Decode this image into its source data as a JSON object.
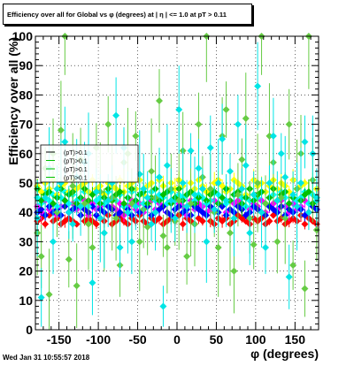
{
  "title": "Efficiency over all for Global vs φ (degrees) at | η | <= 1.0 at pT > 0.11",
  "footer_date": "Wed Jan 31 10:55:57 2018",
  "colors": {
    "frame": "#000000",
    "grid": "#000000",
    "legend_bg": "#ffffff"
  },
  "chart_data": {
    "type": "scatter",
    "title": "Efficiency over all for Global vs φ (degrees) at | η | <= 1.0 at pT > 0.11",
    "xlabel": "φ (degrees)",
    "ylabel": "Efficiency over all (%)",
    "xlim": [
      -180,
      180
    ],
    "ylim": [
      0,
      100
    ],
    "xticks": [
      -150,
      -100,
      -50,
      0,
      50,
      100,
      150
    ],
    "yticks": [
      0,
      10,
      20,
      30,
      40,
      50,
      60,
      70,
      80,
      90,
      100
    ],
    "grid": true,
    "legend_position": "upper-left",
    "legend_entries": [
      "(pT)>0.1",
      "(pT)>0.1",
      "(pT)>0.1",
      "(pT)>0.1"
    ],
    "bins": {
      "start": -177.5,
      "step": 5,
      "count": 72
    },
    "series": [
      {
        "color": "#ff0000",
        "marker": "diamond",
        "values": [
          37,
          38,
          36,
          39,
          37,
          38,
          36,
          37,
          38,
          37,
          36,
          39,
          37,
          38,
          37,
          36,
          38,
          37,
          39,
          36,
          37,
          38,
          37,
          36,
          38,
          37,
          39,
          37,
          36,
          38,
          37,
          38,
          36,
          37,
          38,
          37,
          39,
          36,
          38,
          37,
          36,
          38,
          37,
          39,
          37,
          36,
          38,
          37,
          38,
          36,
          37,
          39,
          38,
          37,
          36,
          38,
          37,
          38,
          36,
          37,
          39,
          37,
          38,
          36,
          37,
          38,
          37,
          39,
          36,
          38,
          37,
          36
        ],
        "err": 1.5
      },
      {
        "color": "#ff00ff",
        "marker": "diamond",
        "values": [
          42,
          40,
          44,
          41,
          43,
          39,
          42,
          44,
          40,
          43,
          41,
          42,
          44,
          39,
          43,
          41,
          42,
          40,
          44,
          42,
          41,
          43,
          39,
          42,
          44,
          41,
          43,
          40,
          42,
          44,
          41,
          43,
          42,
          40,
          44,
          41,
          43,
          42,
          39,
          44,
          41,
          43,
          42,
          40,
          41,
          44,
          43,
          42,
          40,
          41,
          43,
          44,
          42,
          39,
          41,
          43,
          42,
          44,
          40,
          42,
          43,
          41,
          44,
          42,
          40,
          43,
          41,
          42,
          44,
          40,
          43,
          41
        ],
        "err": 2.0
      },
      {
        "color": "#0000ff",
        "marker": "diamond",
        "values": [
          40,
          41,
          39,
          42,
          40,
          41,
          39,
          42,
          40,
          41,
          42,
          39,
          41,
          40,
          42,
          39,
          41,
          40,
          42,
          41,
          39,
          40,
          42,
          41,
          39,
          42,
          40,
          41,
          42,
          39,
          40,
          41,
          42,
          40,
          39,
          41,
          42,
          40,
          41,
          39,
          42,
          41,
          40,
          39,
          42,
          41,
          40,
          42,
          39,
          41,
          40,
          42,
          41,
          39,
          40,
          42,
          41,
          40,
          39,
          42,
          41,
          40,
          42,
          39,
          41,
          40,
          42,
          41,
          39,
          40,
          42,
          41
        ],
        "err": 1.5
      },
      {
        "color": "#00ffff",
        "marker": "diamond",
        "values": [
          45,
          43,
          47,
          44,
          46,
          42,
          45,
          47,
          43,
          46,
          44,
          45,
          47,
          42,
          46,
          44,
          45,
          43,
          47,
          45,
          44,
          46,
          42,
          45,
          47,
          44,
          46,
          43,
          45,
          47,
          44,
          46,
          45,
          43,
          47,
          44,
          46,
          45,
          42,
          47,
          44,
          46,
          45,
          43,
          44,
          47,
          46,
          45,
          43,
          44,
          46,
          47,
          45,
          42,
          44,
          46,
          45,
          47,
          43,
          45,
          46,
          44,
          47,
          45,
          43,
          46,
          44,
          45,
          47,
          43,
          46,
          44
        ],
        "err": 2.0
      },
      {
        "color": "#ffff00",
        "marker": "diamond",
        "values": [
          49,
          47,
          50,
          48,
          51,
          46,
          49,
          50,
          47,
          51,
          48,
          49,
          50,
          47,
          51,
          48,
          49,
          46,
          50,
          49,
          48,
          51,
          47,
          49,
          50,
          48,
          51,
          46,
          49,
          50,
          48,
          51,
          49,
          47,
          50,
          48,
          51,
          49,
          46,
          50,
          48,
          51,
          49,
          47,
          48,
          50,
          51,
          49,
          47,
          48,
          51,
          50,
          49,
          46,
          48,
          51,
          49,
          50,
          47,
          49,
          51,
          48,
          50,
          49,
          47,
          51,
          48,
          49,
          50,
          47,
          51,
          48
        ],
        "err": 2.5
      },
      {
        "color": "#00c000",
        "marker": "diamond",
        "values": [
          48,
          44,
          46,
          47,
          43,
          45,
          48,
          44,
          46,
          47,
          43,
          45,
          48,
          44,
          46,
          47,
          43,
          45,
          48,
          44,
          46,
          47,
          43,
          45,
          48,
          44,
          46,
          47,
          43,
          45,
          48,
          44,
          46,
          47,
          43,
          45,
          48,
          44,
          46,
          47,
          43,
          45,
          48,
          44,
          46,
          47,
          43,
          45,
          48,
          44,
          46,
          47,
          43,
          45,
          48,
          44,
          46,
          47,
          43,
          45,
          48,
          44,
          46,
          47,
          43,
          45,
          48,
          44,
          46,
          47,
          43,
          45
        ],
        "err": 3.0
      },
      {
        "color": "#66cc44",
        "marker": "diamond",
        "values": [
          33,
          25,
          55,
          12,
          60,
          40,
          68,
          100,
          24,
          49,
          15,
          58,
          43,
          36,
          28,
          62,
          47,
          33,
          70,
          45,
          38,
          22,
          57,
          60,
          43,
          66,
          30,
          41,
          35,
          54,
          45,
          78,
          32,
          28,
          48,
          37,
          44,
          61,
          25,
          43,
          36,
          70,
          52,
          100,
          48,
          40,
          28,
          66,
          75,
          33,
          20,
          46,
          58,
          72,
          38,
          29,
          50,
          100,
          43,
          66,
          57,
          30,
          45,
          38,
          70,
          22,
          48,
          60,
          14,
          100,
          51,
          34
        ],
        "err": 12
      },
      {
        "color": "#00e5e5",
        "marker": "diamond",
        "values": [
          38,
          11,
          45,
          55,
          30,
          48,
          50,
          64,
          40,
          36,
          52,
          42,
          57,
          60,
          16,
          47,
          38,
          33,
          44,
          50,
          73,
          28,
          62,
          40,
          30,
          42,
          53,
          48,
          45,
          36,
          40,
          52,
          8,
          56,
          44,
          38,
          75,
          50,
          42,
          61,
          46,
          55,
          48,
          30,
          62,
          41,
          50,
          65,
          44,
          54,
          38,
          70,
          48,
          56,
          33,
          46,
          83,
          40,
          28,
          50,
          66,
          44,
          60,
          52,
          18,
          46,
          42,
          50,
          64,
          40,
          60,
          45
        ],
        "err": 10
      }
    ]
  }
}
